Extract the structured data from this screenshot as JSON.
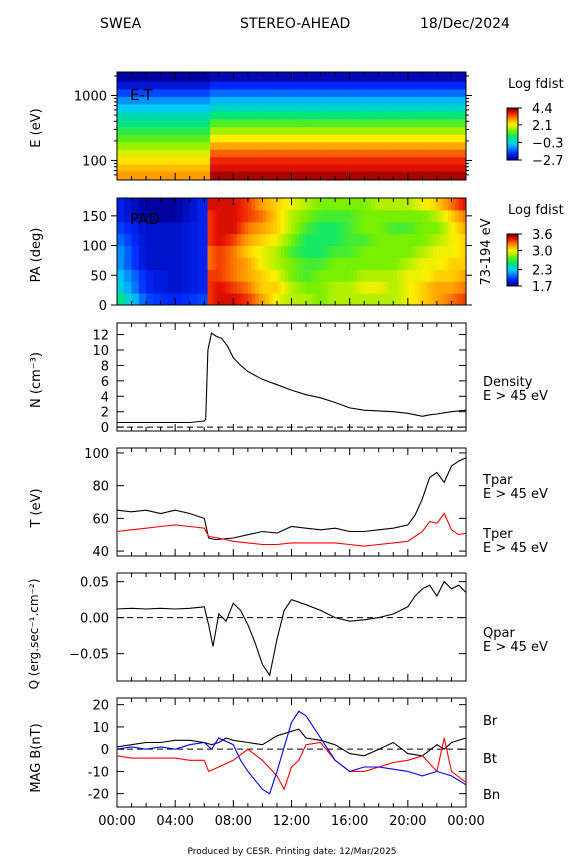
{
  "header": {
    "instrument": "SWEA",
    "spacecraft": "STEREO-AHEAD",
    "date": "18/Dec/2024"
  },
  "footer": "Produced by CESR.   Printing date: 12/Mar/2025",
  "chart_data": [
    {
      "type": "heatmap",
      "panel": "energy-time",
      "inset_label": "E-T",
      "ylabel": "E (eV)",
      "y_scale": "log",
      "yticks": [
        "1000",
        "100"
      ],
      "colorbar": {
        "title": "Log fdist",
        "ticks": [
          "4.4",
          "2.1",
          "-0.3",
          "-2.7"
        ],
        "range": [
          -2.7,
          4.4
        ]
      },
      "energy_channels_eV": [
        60,
        78,
        100,
        130,
        170,
        220,
        290,
        380,
        500,
        650,
        850,
        1100,
        1450,
        1900
      ],
      "step_time_hours": 6.2,
      "log_fdist_before": [
        3.0,
        2.7,
        2.4,
        2.0,
        1.6,
        1.2,
        0.8,
        0.4,
        0.0,
        -0.5,
        -1.0,
        -1.6,
        -2.2,
        -2.7
      ],
      "log_fdist_after": [
        4.3,
        4.0,
        3.8,
        3.4,
        2.9,
        2.3,
        1.7,
        1.1,
        0.5,
        -0.1,
        -0.7,
        -1.3,
        -1.9,
        -2.5
      ]
    },
    {
      "type": "heatmap",
      "panel": "pitch-angle",
      "inset_label": "PAD",
      "ylabel": "PA (deg)",
      "right_label": "73-194 eV",
      "ylim": [
        0,
        180
      ],
      "yticks": [
        0,
        50,
        100,
        150
      ],
      "colorbar": {
        "title": "Log fdist",
        "ticks": [
          "3.6",
          "3.0",
          "2.3",
          "1.7"
        ],
        "range": [
          1.7,
          3.6
        ]
      },
      "pitch_bins_deg": [
        10,
        30,
        50,
        70,
        90,
        110,
        130,
        150,
        170
      ],
      "time_hours": [
        0,
        2,
        4,
        6,
        6.3,
        7,
        8,
        9,
        10,
        11,
        12,
        13,
        14,
        15,
        16,
        17,
        18,
        19,
        20,
        21,
        22,
        23,
        24
      ],
      "log_fdist": [
        [
          2.6,
          2.0,
          1.9,
          2.0,
          3.4,
          3.5,
          3.5,
          3.4,
          3.2,
          3.0,
          2.9,
          2.9,
          2.8,
          2.9,
          2.9,
          2.9,
          2.9,
          2.9,
          3.0,
          3.1,
          3.2,
          3.3,
          3.4
        ],
        [
          2.4,
          1.9,
          1.8,
          1.9,
          3.4,
          3.5,
          3.4,
          3.3,
          3.1,
          3.1,
          2.9,
          2.8,
          2.8,
          2.9,
          2.9,
          3.0,
          3.0,
          2.9,
          3.0,
          3.1,
          3.2,
          3.2,
          3.3
        ],
        [
          2.3,
          1.9,
          1.8,
          1.9,
          3.4,
          3.4,
          3.3,
          3.2,
          3.1,
          3.0,
          2.8,
          2.7,
          2.8,
          2.8,
          2.8,
          2.9,
          2.9,
          2.9,
          3.0,
          3.0,
          3.1,
          3.1,
          3.2
        ],
        [
          2.2,
          1.8,
          1.8,
          1.9,
          3.3,
          3.4,
          3.3,
          3.2,
          3.0,
          2.9,
          2.8,
          2.7,
          2.7,
          2.8,
          2.8,
          2.8,
          2.8,
          2.8,
          2.9,
          3.0,
          3.0,
          3.1,
          3.1
        ],
        [
          2.2,
          1.8,
          1.8,
          1.9,
          3.3,
          3.4,
          3.3,
          3.1,
          3.0,
          2.9,
          2.7,
          2.6,
          2.6,
          2.7,
          2.7,
          2.8,
          2.8,
          2.8,
          2.8,
          2.9,
          3.0,
          3.0,
          3.1
        ],
        [
          2.1,
          1.8,
          1.8,
          1.9,
          3.4,
          3.5,
          3.4,
          3.2,
          3.1,
          3.0,
          2.8,
          2.6,
          2.6,
          2.6,
          2.7,
          2.7,
          2.8,
          2.8,
          2.8,
          2.8,
          2.9,
          3.0,
          3.1
        ],
        [
          2.0,
          1.8,
          1.8,
          1.9,
          3.4,
          3.5,
          3.5,
          3.3,
          3.2,
          3.1,
          2.9,
          2.7,
          2.6,
          2.6,
          2.7,
          2.8,
          2.8,
          2.7,
          2.7,
          2.8,
          2.8,
          3.0,
          3.2
        ],
        [
          1.9,
          1.7,
          1.7,
          1.9,
          3.4,
          3.5,
          3.5,
          3.4,
          3.3,
          3.1,
          2.9,
          2.8,
          2.7,
          2.7,
          2.7,
          2.8,
          2.8,
          2.8,
          2.8,
          2.8,
          2.9,
          3.1,
          3.3
        ],
        [
          1.9,
          1.7,
          1.7,
          1.9,
          3.5,
          3.5,
          3.5,
          3.4,
          3.2,
          3.1,
          3.0,
          2.9,
          2.8,
          2.8,
          2.8,
          2.8,
          2.9,
          2.9,
          2.9,
          3.0,
          3.1,
          3.3,
          3.5
        ]
      ]
    },
    {
      "type": "line",
      "panel": "density",
      "ylabel": "N (cm⁻³)",
      "ylim": [
        -0.5,
        13.5
      ],
      "yticks": [
        0,
        2,
        4,
        6,
        8,
        10,
        12
      ],
      "reference_line": 0,
      "series": [
        {
          "name": "Density E > 45 eV",
          "color": "#000000",
          "x": [
            0,
            1,
            2,
            3,
            4,
            5,
            6,
            6.1,
            6.25,
            6.5,
            6.8,
            7.2,
            7.6,
            8,
            8.5,
            9,
            10,
            11,
            12,
            13,
            14,
            15,
            16,
            17,
            18,
            19,
            20,
            20.5,
            21,
            21.5,
            22,
            23,
            24
          ],
          "y": [
            0.6,
            0.6,
            0.6,
            0.6,
            0.6,
            0.6,
            0.8,
            1.0,
            10.0,
            12.2,
            11.8,
            11.5,
            10.5,
            9.0,
            8.0,
            7.2,
            6.2,
            5.5,
            4.8,
            4.2,
            3.8,
            3.2,
            2.5,
            2.2,
            2.1,
            2.0,
            1.8,
            1.6,
            1.4,
            1.6,
            1.7,
            2.0,
            2.2
          ]
        }
      ]
    },
    {
      "type": "line",
      "panel": "temperature",
      "ylabel": "T (eV)",
      "ylim": [
        37,
        103
      ],
      "yticks": [
        40,
        60,
        80,
        100
      ],
      "series": [
        {
          "name": "Tpar E > 45 eV",
          "color": "#000000",
          "x": [
            0,
            1,
            2,
            3,
            4,
            5,
            6,
            6.3,
            6.8,
            8,
            9,
            10,
            11,
            12,
            13,
            14,
            15,
            16,
            17,
            18,
            19,
            20,
            20.5,
            21,
            21.5,
            22,
            22.5,
            23,
            23.5,
            24
          ],
          "y": [
            65,
            64,
            65,
            63,
            65,
            63,
            60,
            48,
            47,
            48,
            50,
            52,
            51,
            55,
            54,
            53,
            54,
            52,
            52,
            53,
            54,
            56,
            62,
            72,
            85,
            88,
            82,
            92,
            95,
            97
          ]
        },
        {
          "name": "Tper E > 45 eV",
          "color": "#ff0000",
          "x": [
            0,
            1,
            2,
            3,
            4,
            5,
            6,
            6.3,
            7,
            8,
            9,
            10,
            11,
            12,
            13,
            14,
            15,
            16,
            17,
            18,
            19,
            20,
            21,
            21.5,
            22,
            22.5,
            23,
            23.5,
            24
          ],
          "y": [
            52,
            53,
            54,
            55,
            56,
            55,
            54,
            49,
            48,
            46,
            45,
            44,
            44,
            45,
            45,
            45,
            45,
            44,
            43,
            44,
            45,
            46,
            52,
            58,
            57,
            63,
            53,
            50,
            51
          ]
        }
      ]
    },
    {
      "type": "line",
      "panel": "heat-flux",
      "ylabel": "Q (erg.sec⁻¹.cm⁻²)",
      "ylim": [
        -0.088,
        0.062
      ],
      "yticks": [
        0.05,
        0.0,
        -0.05
      ],
      "ytick_labels": [
        "0.05",
        "0.00",
        "−0.05"
      ],
      "reference_line": 0,
      "series": [
        {
          "name": "Qpar E > 45 eV",
          "color": "#000000",
          "x": [
            0,
            1,
            2,
            3,
            4,
            5,
            6,
            6.3,
            6.6,
            7,
            7.5,
            8,
            8.5,
            9,
            9.5,
            10,
            10.5,
            11,
            11.5,
            12,
            13,
            14,
            15,
            16,
            17,
            18,
            19,
            20,
            20.5,
            21,
            21.5,
            22,
            22.5,
            23,
            23.5,
            24
          ],
          "y": [
            0.012,
            0.013,
            0.012,
            0.013,
            0.012,
            0.013,
            0.015,
            -0.01,
            -0.04,
            0.005,
            -0.005,
            0.02,
            0.01,
            -0.01,
            -0.035,
            -0.065,
            -0.08,
            -0.03,
            0.01,
            0.025,
            0.018,
            0.01,
            0.0,
            -0.005,
            -0.003,
            0.0,
            0.005,
            0.015,
            0.03,
            0.04,
            0.045,
            0.03,
            0.05,
            0.04,
            0.045,
            0.035
          ]
        }
      ]
    },
    {
      "type": "line",
      "panel": "magnetic-field",
      "ylabel": "MAG B(nT)",
      "ylim": [
        -26,
        23
      ],
      "yticks": [
        20,
        10,
        0,
        -10,
        -20
      ],
      "reference_line": 0,
      "series": [
        {
          "name": "Br",
          "color": "#000000",
          "x": [
            0,
            1,
            2,
            3,
            4,
            5,
            6,
            6.5,
            7,
            7.5,
            8,
            9,
            10,
            11,
            12,
            12.5,
            13,
            14,
            15,
            16,
            17,
            18,
            19,
            20,
            21,
            22,
            22.5,
            23,
            24
          ],
          "y": [
            1,
            2,
            3,
            3,
            4,
            4,
            3,
            2,
            3,
            5,
            4,
            3,
            2,
            6,
            8,
            9,
            5,
            4,
            2,
            -2,
            -3,
            0,
            3,
            -2,
            -3,
            2,
            0,
            3,
            5
          ]
        },
        {
          "name": "Bt",
          "color": "#ff0000",
          "x": [
            0,
            1,
            2,
            3,
            4,
            5,
            6,
            6.3,
            7,
            8,
            9,
            10,
            11,
            11.5,
            12,
            12.5,
            13,
            14,
            15,
            16,
            17,
            18,
            19,
            20,
            21,
            22,
            22.5,
            23,
            24
          ],
          "y": [
            -3,
            -4,
            -4,
            -4,
            -4,
            -5,
            -5,
            -10,
            -8,
            -5,
            0,
            -5,
            -12,
            -18,
            -8,
            -5,
            2,
            3,
            -5,
            -10,
            -10,
            -8,
            -6,
            -5,
            -3,
            -10,
            5,
            -10,
            -15
          ]
        },
        {
          "name": "Bn",
          "color": "#0000ff",
          "x": [
            0,
            1,
            2,
            3,
            4,
            5,
            6,
            6.5,
            7,
            8,
            8.5,
            9,
            10,
            10.5,
            11,
            12,
            12.5,
            13,
            14,
            15,
            16,
            17,
            18,
            19,
            20,
            21,
            22,
            23,
            24
          ],
          "y": [
            0,
            1,
            0,
            1,
            0,
            2,
            3,
            0,
            5,
            2,
            -5,
            -10,
            -18,
            -20,
            -10,
            12,
            17,
            15,
            5,
            -5,
            -10,
            -8,
            -8,
            -9,
            -10,
            -12,
            -10,
            -12,
            -16
          ]
        }
      ]
    }
  ],
  "x_axis": {
    "range_hours": [
      0,
      24
    ],
    "tick_labels": [
      "00:00",
      "04:00",
      "08:00",
      "12:00",
      "16:00",
      "20:00",
      "00:00"
    ]
  }
}
